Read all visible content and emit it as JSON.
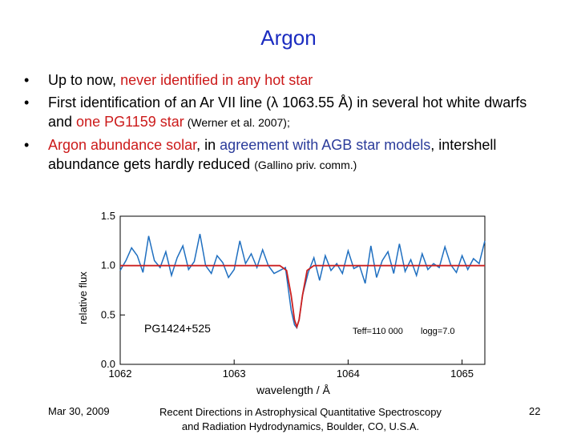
{
  "slide": {
    "title": "Argon",
    "bullets": [
      {
        "plain1": "Up to now, ",
        "red1": "never identified in any hot star"
      },
      {
        "plain1": "First identification of an Ar VII line (λ 1063.55 Å) in several hot white dwarfs and ",
        "red1": "one PG1159 star",
        "small1": " (Werner et al. 2007);"
      },
      {
        "red1": "Argon abundance solar",
        "plain1": ", in ",
        "blue1": "agreement with AGB star models",
        "plain2": ", intershell abundance gets hardly reduced ",
        "small1": "(Gallino priv. comm.)"
      }
    ],
    "footer": {
      "date": "Mar 30, 2009",
      "event_line1": "Recent Directions in Astrophysical Quantitative Spectroscopy",
      "event_line2": "and Radiation Hydrodynamics, Boulder, CO, U.S.A.",
      "page": "22"
    }
  },
  "chart_data": {
    "type": "line",
    "xlabel": "wavelength / Å",
    "ylabel": "relative flux",
    "xlim": [
      1062,
      1065.2
    ],
    "ylim": [
      0,
      1.5
    ],
    "xticks": [
      "1062",
      "1063",
      "1064",
      "1065"
    ],
    "yticks": [
      "0.0",
      "0.5",
      "1.0",
      "1.5"
    ],
    "annotations": [
      "PG1424+525",
      "Teff=110 000",
      "logg=7.0"
    ],
    "series": [
      {
        "color": "#1f6fc0",
        "x": [
          1062.0,
          1062.05,
          1062.1,
          1062.15,
          1062.2,
          1062.25,
          1062.3,
          1062.35,
          1062.4,
          1062.45,
          1062.5,
          1062.55,
          1062.6,
          1062.65,
          1062.7,
          1062.75,
          1062.8,
          1062.85,
          1062.9,
          1062.95,
          1063.0,
          1063.05,
          1063.1,
          1063.15,
          1063.2,
          1063.25,
          1063.3,
          1063.35,
          1063.4,
          1063.45,
          1063.5,
          1063.53,
          1063.55,
          1063.57,
          1063.6,
          1063.65,
          1063.7,
          1063.75,
          1063.8,
          1063.85,
          1063.9,
          1063.95,
          1064.0,
          1064.05,
          1064.1,
          1064.15,
          1064.2,
          1064.25,
          1064.3,
          1064.35,
          1064.4,
          1064.45,
          1064.5,
          1064.55,
          1064.6,
          1064.65,
          1064.7,
          1064.75,
          1064.8,
          1064.85,
          1064.9,
          1064.95,
          1065.0,
          1065.05,
          1065.1,
          1065.15,
          1065.2
        ],
        "y": [
          0.95,
          1.05,
          1.18,
          1.1,
          0.93,
          1.3,
          1.05,
          0.98,
          1.14,
          0.9,
          1.08,
          1.2,
          0.96,
          1.04,
          1.32,
          1.0,
          0.92,
          1.1,
          1.03,
          0.88,
          0.96,
          1.25,
          1.02,
          1.12,
          0.98,
          1.16,
          1.0,
          0.92,
          0.95,
          0.98,
          0.55,
          0.4,
          0.37,
          0.45,
          0.7,
          0.93,
          1.08,
          0.85,
          1.1,
          0.95,
          1.02,
          0.92,
          1.15,
          0.97,
          1.0,
          0.82,
          1.2,
          0.88,
          1.05,
          1.14,
          0.92,
          1.22,
          0.94,
          1.06,
          0.9,
          1.12,
          0.96,
          1.02,
          0.98,
          1.19,
          1.01,
          0.93,
          1.1,
          0.96,
          1.07,
          1.02,
          1.25
        ]
      },
      {
        "color": "#cc2020",
        "x": [
          1062.0,
          1063.4,
          1063.46,
          1063.5,
          1063.53,
          1063.55,
          1063.57,
          1063.6,
          1063.64,
          1063.7,
          1065.2
        ],
        "y": [
          1.0,
          1.0,
          0.95,
          0.7,
          0.45,
          0.38,
          0.45,
          0.7,
          0.95,
          1.0,
          1.0
        ]
      }
    ]
  }
}
